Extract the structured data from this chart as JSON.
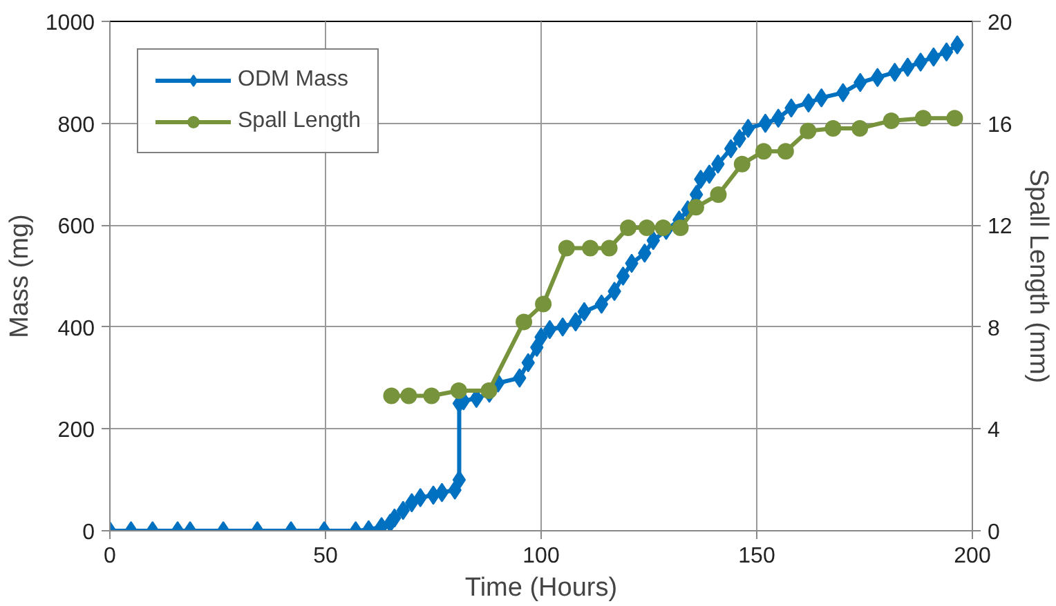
{
  "chart_data": {
    "type": "line",
    "xlabel": "Time (Hours)",
    "ylabel": "Mass (mg)",
    "y2label": "Spall Length (mm)",
    "xlim": [
      0,
      200
    ],
    "xticks": [
      0,
      50,
      100,
      150,
      200
    ],
    "ylim": [
      0,
      1000
    ],
    "yticks": [
      0,
      200,
      400,
      600,
      800,
      1000
    ],
    "y2lim": [
      0,
      20
    ],
    "y2ticks": [
      0,
      4,
      8,
      12,
      16,
      20
    ],
    "grid": true,
    "legend": "top left",
    "line_style": "solid",
    "series": [
      {
        "name": "ODM Mass",
        "color": "#0070c0",
        "marker": "diamond",
        "x": [
          0,
          4.9,
          9.9,
          15.7,
          18.6,
          26.3,
          34.2,
          42,
          49.7,
          57,
          60,
          63,
          65,
          66,
          68,
          70,
          72,
          75,
          77,
          80,
          81,
          81,
          82,
          85,
          88,
          90,
          95,
          97,
          99,
          100,
          102,
          105,
          108,
          110,
          114,
          117,
          119,
          121,
          124,
          126,
          129,
          132,
          134,
          136,
          137,
          139,
          141,
          144,
          146,
          148,
          152,
          155,
          158,
          162,
          165,
          170,
          174,
          178,
          182,
          185,
          188,
          191,
          194,
          196.5
        ],
        "values": [
          0,
          0,
          0,
          0,
          0,
          0,
          0,
          0,
          0,
          0,
          2,
          8,
          15,
          25,
          40,
          55,
          65,
          70,
          75,
          80,
          100,
          250,
          255,
          260,
          270,
          290,
          300,
          330,
          360,
          380,
          395,
          400,
          410,
          430,
          445,
          470,
          500,
          525,
          545,
          570,
          590,
          610,
          630,
          660,
          690,
          700,
          720,
          750,
          770,
          790,
          800,
          810,
          830,
          840,
          850,
          860,
          880,
          890,
          900,
          910,
          920,
          930,
          940,
          954
        ]
      },
      {
        "name": "Spall Length",
        "color": "#77933c",
        "marker": "circle",
        "axis": "y2",
        "x": [
          65.3,
          69.3,
          74.6,
          80.9,
          87.9,
          96.0,
          100.5,
          105.9,
          111.4,
          115.8,
          120.2,
          124.5,
          128.3,
          132.3,
          135.9,
          141.1,
          146.6,
          151.6,
          156.7,
          161.9,
          167.7,
          173.9,
          181.2,
          188.6,
          195.9
        ],
        "values": [
          5.3,
          5.3,
          5.3,
          5.5,
          5.5,
          8.2,
          8.9,
          11.1,
          11.1,
          11.1,
          11.9,
          11.9,
          11.9,
          11.9,
          12.7,
          13.2,
          14.4,
          14.9,
          14.9,
          15.7,
          15.8,
          15.8,
          16.1,
          16.2,
          16.2
        ]
      }
    ]
  }
}
